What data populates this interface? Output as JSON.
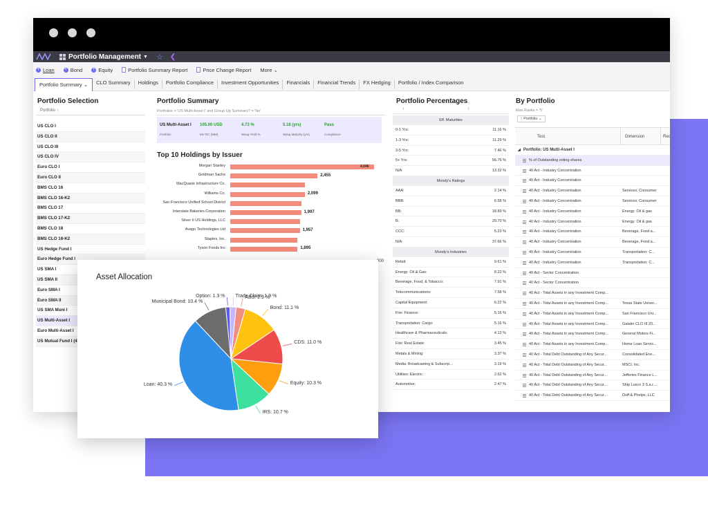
{
  "app": {
    "title": "Portfolio Management"
  },
  "toolbar": [
    {
      "label": "Loan",
      "icon": "plus-icon"
    },
    {
      "label": "Bond",
      "icon": "plus-icon"
    },
    {
      "label": "Equity",
      "icon": "plus-icon"
    },
    {
      "label": "Portfolio Summary Report",
      "icon": "report-icon"
    },
    {
      "label": "Price Change Report",
      "icon": "report-icon"
    },
    {
      "label": "More ⌄",
      "icon": ""
    }
  ],
  "tabs": [
    {
      "label": "Portfolio Summary ⌄",
      "active": true
    },
    {
      "label": "CLO Summary"
    },
    {
      "label": "Holdings"
    },
    {
      "label": "Portfolio Compliance"
    },
    {
      "label": "Investment Opportunities"
    },
    {
      "label": "Financials"
    },
    {
      "label": "Financial Trends"
    },
    {
      "label": "FX Hedging"
    },
    {
      "label": "Portfolio / Index Comparison"
    }
  ],
  "portfolio_selection": {
    "title": "Portfolio Selection",
    "column": "Portfolio ↑",
    "items": [
      "US CLO I",
      "US CLO II",
      "US CLO III",
      "US CLO IV",
      "Euro CLO I",
      "Euro CLO II",
      "BMS CLO 16",
      "BMS CLO 16-K2",
      "BMS CLO 17",
      "BMS CLO 17-K2",
      "BMS CLO 18",
      "BMS CLO 18-K2",
      "US Hedge Fund I",
      "Euro Hedge Fund I",
      "US SMA I",
      "US SMA II",
      "Euro SMA I",
      "Euro SMA II",
      "US SMA Muni I",
      "US Multi-Asset I",
      "Euro Multi-Asset I",
      "US Mutual Fund I (4"
    ],
    "active_index": 19
  },
  "portfolio_summary": {
    "title": "Portfolio Summary",
    "filter": "Portfolios = 'US Multi-Asset I' and Group Up Summary? = 'No'",
    "name": "US Multi-Asset I",
    "name_label": "Portfolio",
    "metrics": [
      {
        "value": "105.00 USD",
        "label": "MV RC (MM)"
      },
      {
        "value": "4.73 %",
        "label": "Wavg Yield %"
      },
      {
        "value": "5.18 (yrs)",
        "label": "Wavg Maturity (yrs)"
      },
      {
        "value": "Pass",
        "label": "Compliance"
      }
    ]
  },
  "top_holdings": {
    "title": "Top 10 Holdings by Issuer",
    "axis_end_label": "000",
    "chart_data": {
      "type": "bar",
      "orientation": "horizontal",
      "categories": [
        "Morgan Stanley",
        "Goldman Sachs",
        "MacQuarie Infrastructure Co.",
        "Williams Co.",
        "San Francisco Unified School District",
        "Interstate Bakeries Corporation",
        "Silver II US Holdings, LLC",
        "Avago Technologies Ltd",
        "Staples, Inc.",
        "Tyson Foods Inc"
      ],
      "values": [
        4046,
        2455,
        2099,
        2099,
        1997,
        1997,
        1957,
        1957,
        1895,
        1895
      ],
      "data_labels": [
        "4,046",
        "2,455",
        "",
        "2,099",
        "",
        "1,997",
        "",
        "1,957",
        "",
        "1,895"
      ],
      "xlim": [
        0,
        4046
      ]
    }
  },
  "portfolio_percentages": {
    "title": "Portfolio Percentages",
    "header_arrows": [
      "↑",
      "↑"
    ],
    "sections": [
      {
        "title": "Eff. Maturities",
        "rows": [
          [
            "0-1 Yrs:",
            "11.16 %"
          ],
          [
            "1-3 Yrs:",
            "11.29 %"
          ],
          [
            "3-5 Yrs:",
            "7.46 %"
          ],
          [
            "5+ Yrs:",
            "56.76 %"
          ],
          [
            "N/A:",
            "13.32 %"
          ]
        ]
      },
      {
        "title": "Moody's Ratings",
        "rows": [
          [
            "AAA:",
            "2.14 %"
          ],
          [
            "BBB:",
            "6.58 %"
          ],
          [
            "BB:",
            "18.89 %"
          ],
          [
            "B:",
            "29.70 %"
          ],
          [
            "CCC:",
            "5.23 %"
          ],
          [
            "N/A:",
            "37.66 %"
          ]
        ]
      },
      {
        "title": "Moody's Industries",
        "rows": [
          [
            "Retail:",
            "9.61 %"
          ],
          [
            "Energy: Oil & Gas:",
            "8.22 %"
          ],
          [
            "Beverage, Food, & Tobacco:",
            "7.91 %"
          ],
          [
            "Telecommunications:",
            "7.58 %"
          ],
          [
            "Capital Equipment:",
            "6.22 %"
          ],
          [
            "Fire: Finance:",
            "5.16 %"
          ],
          [
            "Transportation: Cargo:",
            "5.16 %"
          ],
          [
            "Healthcare & Pharmaceuticals:",
            "4.13 %"
          ],
          [
            "Fire: Real Estate:",
            "3.45 %"
          ],
          [
            "Metals & Mining:",
            "3.37 %"
          ],
          [
            "Media: Broadcasting & Subscrip...",
            "3.19 %"
          ],
          [
            "Utilities: Electric:",
            "2.62 %"
          ],
          [
            "Automotive:",
            "2.47 %"
          ]
        ]
      }
    ]
  },
  "by_portfolio": {
    "title": "By Portfolio",
    "filter": "Max Ranks = '5'",
    "group_chip": "↑ Portfolio ⌄",
    "columns": [
      "Test",
      "Dimension",
      "Req"
    ],
    "group_row": "Portfolio: US Multi-Asset I",
    "rows": [
      [
        "% of Outstanding voting shares",
        ""
      ],
      [
        "40 Act - Industry Concentration",
        ""
      ],
      [
        "40 Act - Industry Concentration",
        ""
      ],
      [
        "40 Act - Industry Concentration",
        "Services: Consumer"
      ],
      [
        "40 Act - Industry Concentration",
        "Services: Consumer"
      ],
      [
        "40 Act - Industry Concentration",
        "Energy: Oil & gas"
      ],
      [
        "40 Act - Industry Concentration",
        "Energy: Oil & gas"
      ],
      [
        "40 Act - Industry Concentration",
        "Beverage, Food a..."
      ],
      [
        "40 Act - Industry Concentration",
        "Beverage, Food a..."
      ],
      [
        "40 Act - Industry Concentration",
        "Transportation: C..."
      ],
      [
        "40 Act - Industry Concentration",
        "Transportation: C..."
      ],
      [
        "40 Act - Sector Concentration",
        ""
      ],
      [
        "40 Act - Sector Concentration",
        ""
      ],
      [
        "40 Act - Total Assets in any Investment Comp...",
        ""
      ],
      [
        "40 Act - Total Assets in any Investment Comp...",
        "Texas State Univer..."
      ],
      [
        "40 Act - Total Assets in any Investment Comp...",
        "San Francisco Uni..."
      ],
      [
        "40 Act - Total Assets in any Investment Comp...",
        "Galatin CLO III 20..."
      ],
      [
        "40 Act - Total Assets in any Investment Comp...",
        "General Motors Fi..."
      ],
      [
        "40 Act - Total Assets in any Investment Comp...",
        "Home Loan Servic..."
      ],
      [
        "40 Act - Total Debt Outstanding of Any Secur...",
        "Consolidated Ene..."
      ],
      [
        "40 Act - Total Debt Outstanding of Any Secur...",
        "MSCI, Inc."
      ],
      [
        "40 Act - Total Debt Outstanding of Any Secur...",
        "Jefferies Finance L..."
      ],
      [
        "40 Act - Total Debt Outstanding of Any Secur...",
        "Ship Luxco 3 S.a.r...."
      ],
      [
        "40 Act - Total Debt Outstanding of Any Secur...",
        "Duff & Phelps, LLC"
      ]
    ]
  },
  "asset_allocation": {
    "title": "Asset Allocation",
    "chart_data": {
      "type": "pie",
      "slices": [
        {
          "label": "ABS: 2.9 %",
          "value": 2.9,
          "color": "#f28e80"
        },
        {
          "label": "Bond: 11.1 %",
          "value": 11.1,
          "color": "#ffc20e"
        },
        {
          "label": "CDS: 11.0 %",
          "value": 11.0,
          "color": "#f04b4b"
        },
        {
          "label": "Equity: 10.3 %",
          "value": 10.3,
          "color": "#ff9f10"
        },
        {
          "label": "IRS: 10.7 %",
          "value": 10.7,
          "color": "#3ee0a0"
        },
        {
          "label": "Loan: 40.3 %",
          "value": 40.3,
          "color": "#2f8fe8"
        },
        {
          "label": "Municipal Bond: 10.4 %",
          "value": 10.4,
          "color": "#6c6c6c"
        },
        {
          "label": "Option: 1.3 %",
          "value": 1.3,
          "color": "#5b5bf0"
        },
        {
          "label": "Trade Claim: 1.9 %",
          "value": 1.9,
          "color": "#c8b6ff"
        }
      ]
    }
  }
}
